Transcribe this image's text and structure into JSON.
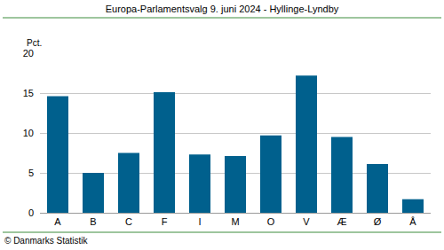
{
  "chart_data": {
    "type": "bar",
    "title": "Europa-Parlamentsvalg 9. juni 2024 - Hyllinge-Lyndby",
    "y_label": "Pct.",
    "source": "© Danmarks Statistik",
    "categories": [
      "A",
      "B",
      "C",
      "F",
      "I",
      "M",
      "O",
      "V",
      "Æ",
      "Ø",
      "Å"
    ],
    "values": [
      14.6,
      5.0,
      7.5,
      15.1,
      7.3,
      7.1,
      9.7,
      17.2,
      9.5,
      6.1,
      1.7
    ],
    "color": "#00608d",
    "ylim": [
      0,
      20
    ],
    "yticks": [
      0,
      5,
      10,
      15,
      20
    ],
    "grid": true
  }
}
